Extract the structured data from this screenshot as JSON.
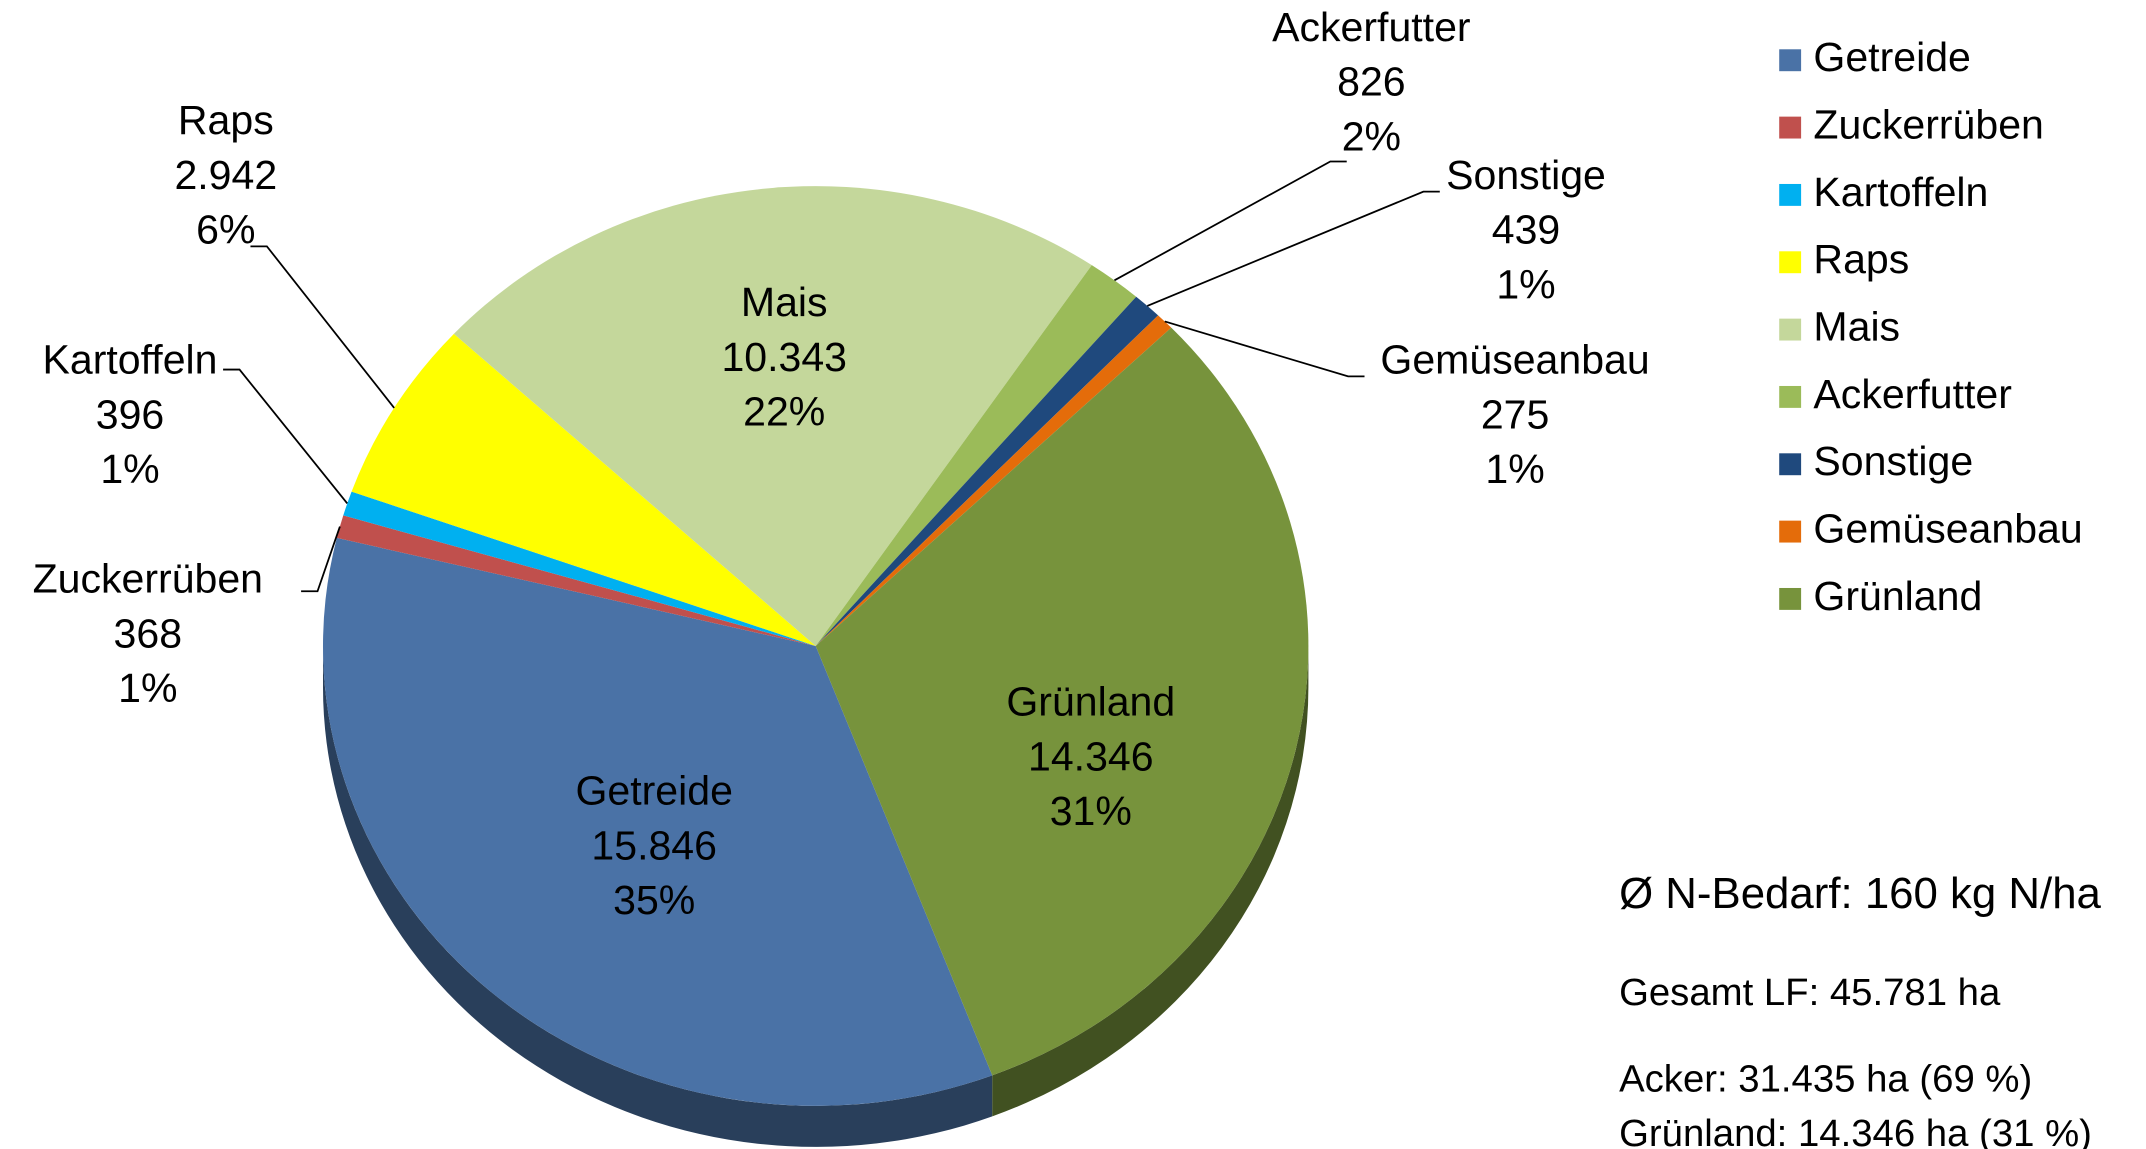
{
  "chart_data": {
    "type": "pie",
    "categories": [
      "Getreide",
      "Zuckerrüben",
      "Kartoffeln",
      "Raps",
      "Mais",
      "Ackerfutter",
      "Sonstige",
      "Gemüseanbau",
      "Grünland"
    ],
    "values": [
      15846,
      368,
      396,
      2942,
      10343,
      826,
      439,
      275,
      14346
    ],
    "value_labels": [
      "15.846",
      "368",
      "396",
      "2.942",
      "10.343",
      "826",
      "439",
      "275",
      "14.346"
    ],
    "percent_labels": [
      "35%",
      "1%",
      "1%",
      "6%",
      "22%",
      "2%",
      "1%",
      "1%",
      "31%"
    ],
    "colors": [
      "#4a72a6",
      "#c0504d",
      "#00b0f0",
      "#ffff00",
      "#c4d79b",
      "#9bbb59",
      "#1f497d",
      "#e46c0a",
      "#77933c"
    ],
    "legend": "right",
    "annotations": [
      "Ø N-Bedarf: 160 kg N/ha",
      "Gesamt LF: 45.781 ha",
      "Acker: 31.435 ha (69 %)",
      "Grünland: 14.346 ha (31 %)"
    ]
  }
}
